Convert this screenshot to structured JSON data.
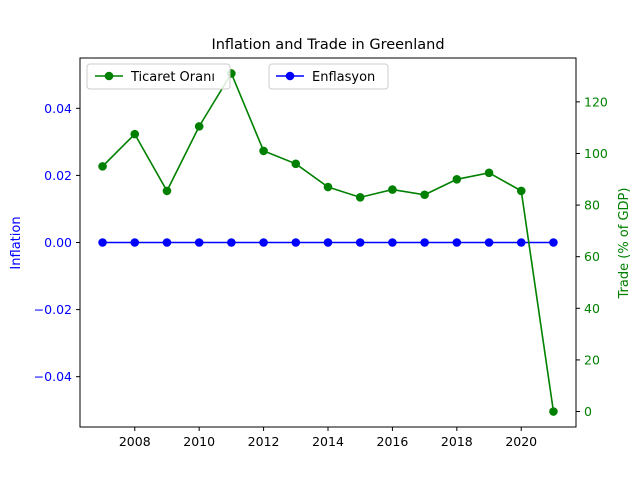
{
  "chart_data": {
    "type": "line",
    "title": "Inflation and Trade in Greenland",
    "x": [
      2007,
      2008,
      2009,
      2010,
      2011,
      2012,
      2013,
      2014,
      2015,
      2016,
      2017,
      2018,
      2019,
      2020,
      2021
    ],
    "xlim": [
      2006.3,
      2021.7
    ],
    "xticks": [
      2008,
      2010,
      2012,
      2014,
      2016,
      2018,
      2020
    ],
    "y_left": {
      "label": "Inflation",
      "color": "#0000ff",
      "ylim": [
        -0.055,
        0.055
      ],
      "ticks": [
        -0.04,
        -0.02,
        0.0,
        0.02,
        0.04
      ],
      "tick_labels": [
        "−0.04",
        "−0.02",
        "0.00",
        "0.02",
        "0.04"
      ]
    },
    "y_right": {
      "label": "Trade (% of GDP)",
      "color": "#008000",
      "ylim": [
        -6,
        137
      ],
      "ticks": [
        0,
        20,
        40,
        60,
        80,
        100,
        120
      ],
      "tick_labels": [
        "0",
        "20",
        "40",
        "60",
        "80",
        "100",
        "120"
      ]
    },
    "series": [
      {
        "name": "Enflasyon",
        "axis": "left",
        "color": "#0000ff",
        "values": [
          0,
          0,
          0,
          0,
          0,
          0,
          0,
          0,
          0,
          0,
          0,
          0,
          0,
          0,
          0
        ]
      },
      {
        "name": "Ticaret Oranı",
        "axis": "right",
        "color": "#008000",
        "values": [
          95,
          107.5,
          85.5,
          110.5,
          131,
          101,
          96,
          87,
          83,
          86,
          84,
          90,
          92.5,
          85.5,
          0
        ]
      }
    ],
    "legend_placement": [
      "upper-left",
      "upper-center"
    ],
    "grid": false
  }
}
